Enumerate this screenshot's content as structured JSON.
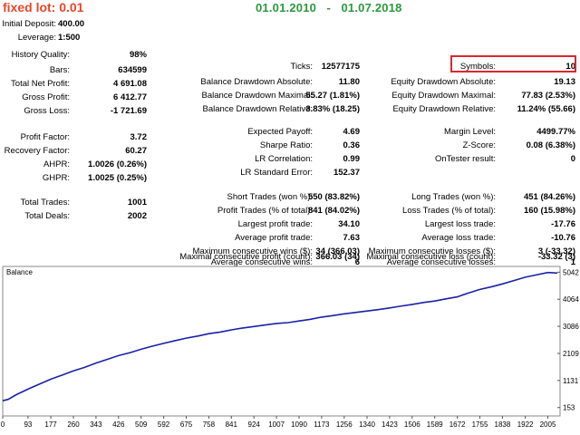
{
  "header": {
    "lot": "fixed lot: 0.01",
    "date_from": "01.01.2010",
    "date_sep": "-",
    "date_to": "01.07.2018"
  },
  "top": [
    {
      "label": "Initial Deposit:",
      "value": "400.00"
    },
    {
      "label": "Leverage:",
      "value": "1:500"
    }
  ],
  "col1": [
    {
      "label": "History Quality:",
      "value": "98%"
    },
    {
      "label": "Bars:",
      "value": "634599"
    },
    {
      "label": "Total Net Profit:",
      "value": "4 691.08"
    },
    {
      "label": "Gross Profit:",
      "value": "6 412.77"
    },
    {
      "label": "Gross Loss:",
      "value": "-1 721.69"
    },
    {
      "label": "Profit Factor:",
      "value": "3.72"
    },
    {
      "label": "Recovery Factor:",
      "value": "60.27"
    },
    {
      "label": "AHPR:",
      "value": "1.0026 (0.26%)"
    },
    {
      "label": "GHPR:",
      "value": "1.0025 (0.25%)"
    },
    {
      "label": "Total Trades:",
      "value": "1001"
    },
    {
      "label": "Total Deals:",
      "value": "2002"
    }
  ],
  "col2": [
    {
      "label": "Ticks:",
      "value": "12577175"
    },
    {
      "label": "Balance Drawdown Absolute:",
      "value": "11.80"
    },
    {
      "label": "Balance Drawdown Maximal:",
      "value": "55.27 (1.81%)"
    },
    {
      "label": "Balance Drawdown Relative:",
      "value": "3.83% (18.25)"
    },
    {
      "label": "Expected Payoff:",
      "value": "4.69"
    },
    {
      "label": "Sharpe Ratio:",
      "value": "0.36"
    },
    {
      "label": "LR Correlation:",
      "value": "0.99"
    },
    {
      "label": "LR Standard Error:",
      "value": "152.37"
    },
    {
      "label": "Short Trades (won %):",
      "value": "550 (83.82%)"
    },
    {
      "label": "Profit Trades (% of total):",
      "value": "841 (84.02%)"
    },
    {
      "label": "Largest profit trade:",
      "value": "34.10"
    },
    {
      "label": "Average profit trade:",
      "value": "7.63"
    },
    {
      "label": "Maximum consecutive wins ($):",
      "value": "34 (366.03)"
    },
    {
      "label": "Maximal consecutive profit (count):",
      "value": "366.03 (34)"
    },
    {
      "label": "Average consecutive wins:",
      "value": "6"
    }
  ],
  "col3": [
    {
      "label": "Symbols:",
      "value": "10"
    },
    {
      "label": "Equity Drawdown Absolute:",
      "value": "19.13"
    },
    {
      "label": "Equity Drawdown Maximal:",
      "value": "77.83 (2.53%)"
    },
    {
      "label": "Equity Drawdown Relative:",
      "value": "11.24% (55.66)"
    },
    {
      "label": "Margin Level:",
      "value": "4499.77%"
    },
    {
      "label": "Z-Score:",
      "value": "0.08 (6.38%)"
    },
    {
      "label": "OnTester result:",
      "value": "0"
    },
    {
      "label": "Long Trades (won %):",
      "value": "451 (84.26%)"
    },
    {
      "label": "Loss Trades (% of total):",
      "value": "160 (15.98%)"
    },
    {
      "label": "Largest loss trade:",
      "value": "-17.76"
    },
    {
      "label": "Average loss trade:",
      "value": "-10.76"
    },
    {
      "label": "Maximum consecutive losses ($):",
      "value": "3 (-33.32)"
    },
    {
      "label": "Maximal consecutive loss (count):",
      "value": "-33.32 (3)"
    },
    {
      "label": "Average consecutive losses:",
      "value": "1"
    }
  ],
  "chart_data": {
    "type": "line",
    "title": "Balance",
    "x_ticks": [
      "0",
      "93",
      "177",
      "260",
      "343",
      "426",
      "509",
      "592",
      "675",
      "758",
      "841",
      "924",
      "1007",
      "1090",
      "1173",
      "1256",
      "1340",
      "1423",
      "1506",
      "1589",
      "1672",
      "1755",
      "1838",
      "1922",
      "2005"
    ],
    "y_ticks": [
      "5042",
      "4064",
      "3086",
      "2109",
      "1131",
      "153"
    ],
    "xlim": [
      0,
      2050
    ],
    "ylim": [
      -150,
      5250
    ],
    "series": [
      {
        "color": "#1a22a8",
        "x": [
          0,
          20,
          50,
          93,
          130,
          177,
          220,
          260,
          300,
          343,
          380,
          426,
          470,
          509,
          550,
          592,
          630,
          675,
          720,
          758,
          800,
          841,
          880,
          924,
          960,
          1007,
          1050,
          1090,
          1130,
          1173,
          1210,
          1256,
          1300,
          1340,
          1380,
          1423,
          1460,
          1506,
          1550,
          1589,
          1630,
          1672,
          1710,
          1755,
          1800,
          1838,
          1880,
          1922,
          1960,
          2005,
          2040
        ],
        "y": [
          400,
          450,
          620,
          820,
          980,
          1180,
          1330,
          1480,
          1600,
          1760,
          1880,
          2030,
          2140,
          2260,
          2370,
          2470,
          2560,
          2660,
          2740,
          2820,
          2880,
          2960,
          3020,
          3080,
          3130,
          3190,
          3220,
          3280,
          3340,
          3420,
          3470,
          3540,
          3590,
          3640,
          3690,
          3750,
          3810,
          3880,
          3950,
          4000,
          4080,
          4150,
          4280,
          4420,
          4520,
          4620,
          4740,
          4860,
          4940,
          5030,
          5010
        ]
      }
    ]
  }
}
